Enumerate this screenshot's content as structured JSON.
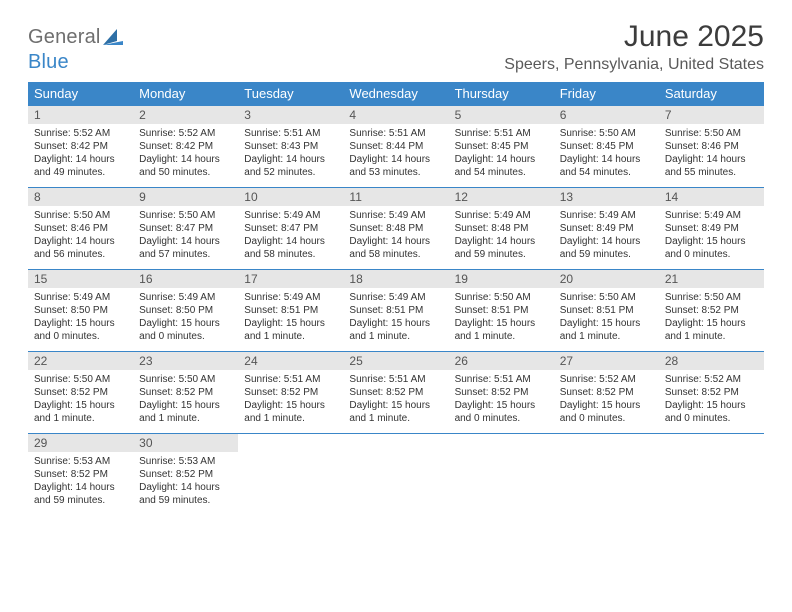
{
  "brand": {
    "word1": "General",
    "word2": "Blue"
  },
  "title": "June 2025",
  "location": "Speers, Pennsylvania, United States",
  "styling": {
    "header_bg": "#3a86c8",
    "header_text": "#ffffff",
    "daynum_bg": "#e6e6e6",
    "border_color": "#3a86c8",
    "body_text": "#333333",
    "page_bg": "#ffffff",
    "title_color": "#3c3c3c",
    "location_color": "#5a5a5a",
    "logo_gray": "#6e6e6e",
    "logo_blue": "#3a86c8",
    "month_title_fontsize": 30,
    "location_fontsize": 16,
    "weekday_fontsize": 13,
    "daynum_fontsize": 12,
    "body_fontsize": 10,
    "columns": 7
  },
  "weekdays": [
    "Sunday",
    "Monday",
    "Tuesday",
    "Wednesday",
    "Thursday",
    "Friday",
    "Saturday"
  ],
  "days": [
    {
      "n": "1",
      "sunrise": "Sunrise: 5:52 AM",
      "sunset": "Sunset: 8:42 PM",
      "dl1": "Daylight: 14 hours",
      "dl2": "and 49 minutes."
    },
    {
      "n": "2",
      "sunrise": "Sunrise: 5:52 AM",
      "sunset": "Sunset: 8:42 PM",
      "dl1": "Daylight: 14 hours",
      "dl2": "and 50 minutes."
    },
    {
      "n": "3",
      "sunrise": "Sunrise: 5:51 AM",
      "sunset": "Sunset: 8:43 PM",
      "dl1": "Daylight: 14 hours",
      "dl2": "and 52 minutes."
    },
    {
      "n": "4",
      "sunrise": "Sunrise: 5:51 AM",
      "sunset": "Sunset: 8:44 PM",
      "dl1": "Daylight: 14 hours",
      "dl2": "and 53 minutes."
    },
    {
      "n": "5",
      "sunrise": "Sunrise: 5:51 AM",
      "sunset": "Sunset: 8:45 PM",
      "dl1": "Daylight: 14 hours",
      "dl2": "and 54 minutes."
    },
    {
      "n": "6",
      "sunrise": "Sunrise: 5:50 AM",
      "sunset": "Sunset: 8:45 PM",
      "dl1": "Daylight: 14 hours",
      "dl2": "and 54 minutes."
    },
    {
      "n": "7",
      "sunrise": "Sunrise: 5:50 AM",
      "sunset": "Sunset: 8:46 PM",
      "dl1": "Daylight: 14 hours",
      "dl2": "and 55 minutes."
    },
    {
      "n": "8",
      "sunrise": "Sunrise: 5:50 AM",
      "sunset": "Sunset: 8:46 PM",
      "dl1": "Daylight: 14 hours",
      "dl2": "and 56 minutes."
    },
    {
      "n": "9",
      "sunrise": "Sunrise: 5:50 AM",
      "sunset": "Sunset: 8:47 PM",
      "dl1": "Daylight: 14 hours",
      "dl2": "and 57 minutes."
    },
    {
      "n": "10",
      "sunrise": "Sunrise: 5:49 AM",
      "sunset": "Sunset: 8:47 PM",
      "dl1": "Daylight: 14 hours",
      "dl2": "and 58 minutes."
    },
    {
      "n": "11",
      "sunrise": "Sunrise: 5:49 AM",
      "sunset": "Sunset: 8:48 PM",
      "dl1": "Daylight: 14 hours",
      "dl2": "and 58 minutes."
    },
    {
      "n": "12",
      "sunrise": "Sunrise: 5:49 AM",
      "sunset": "Sunset: 8:48 PM",
      "dl1": "Daylight: 14 hours",
      "dl2": "and 59 minutes."
    },
    {
      "n": "13",
      "sunrise": "Sunrise: 5:49 AM",
      "sunset": "Sunset: 8:49 PM",
      "dl1": "Daylight: 14 hours",
      "dl2": "and 59 minutes."
    },
    {
      "n": "14",
      "sunrise": "Sunrise: 5:49 AM",
      "sunset": "Sunset: 8:49 PM",
      "dl1": "Daylight: 15 hours",
      "dl2": "and 0 minutes."
    },
    {
      "n": "15",
      "sunrise": "Sunrise: 5:49 AM",
      "sunset": "Sunset: 8:50 PM",
      "dl1": "Daylight: 15 hours",
      "dl2": "and 0 minutes."
    },
    {
      "n": "16",
      "sunrise": "Sunrise: 5:49 AM",
      "sunset": "Sunset: 8:50 PM",
      "dl1": "Daylight: 15 hours",
      "dl2": "and 0 minutes."
    },
    {
      "n": "17",
      "sunrise": "Sunrise: 5:49 AM",
      "sunset": "Sunset: 8:51 PM",
      "dl1": "Daylight: 15 hours",
      "dl2": "and 1 minute."
    },
    {
      "n": "18",
      "sunrise": "Sunrise: 5:49 AM",
      "sunset": "Sunset: 8:51 PM",
      "dl1": "Daylight: 15 hours",
      "dl2": "and 1 minute."
    },
    {
      "n": "19",
      "sunrise": "Sunrise: 5:50 AM",
      "sunset": "Sunset: 8:51 PM",
      "dl1": "Daylight: 15 hours",
      "dl2": "and 1 minute."
    },
    {
      "n": "20",
      "sunrise": "Sunrise: 5:50 AM",
      "sunset": "Sunset: 8:51 PM",
      "dl1": "Daylight: 15 hours",
      "dl2": "and 1 minute."
    },
    {
      "n": "21",
      "sunrise": "Sunrise: 5:50 AM",
      "sunset": "Sunset: 8:52 PM",
      "dl1": "Daylight: 15 hours",
      "dl2": "and 1 minute."
    },
    {
      "n": "22",
      "sunrise": "Sunrise: 5:50 AM",
      "sunset": "Sunset: 8:52 PM",
      "dl1": "Daylight: 15 hours",
      "dl2": "and 1 minute."
    },
    {
      "n": "23",
      "sunrise": "Sunrise: 5:50 AM",
      "sunset": "Sunset: 8:52 PM",
      "dl1": "Daylight: 15 hours",
      "dl2": "and 1 minute."
    },
    {
      "n": "24",
      "sunrise": "Sunrise: 5:51 AM",
      "sunset": "Sunset: 8:52 PM",
      "dl1": "Daylight: 15 hours",
      "dl2": "and 1 minute."
    },
    {
      "n": "25",
      "sunrise": "Sunrise: 5:51 AM",
      "sunset": "Sunset: 8:52 PM",
      "dl1": "Daylight: 15 hours",
      "dl2": "and 1 minute."
    },
    {
      "n": "26",
      "sunrise": "Sunrise: 5:51 AM",
      "sunset": "Sunset: 8:52 PM",
      "dl1": "Daylight: 15 hours",
      "dl2": "and 0 minutes."
    },
    {
      "n": "27",
      "sunrise": "Sunrise: 5:52 AM",
      "sunset": "Sunset: 8:52 PM",
      "dl1": "Daylight: 15 hours",
      "dl2": "and 0 minutes."
    },
    {
      "n": "28",
      "sunrise": "Sunrise: 5:52 AM",
      "sunset": "Sunset: 8:52 PM",
      "dl1": "Daylight: 15 hours",
      "dl2": "and 0 minutes."
    },
    {
      "n": "29",
      "sunrise": "Sunrise: 5:53 AM",
      "sunset": "Sunset: 8:52 PM",
      "dl1": "Daylight: 14 hours",
      "dl2": "and 59 minutes."
    },
    {
      "n": "30",
      "sunrise": "Sunrise: 5:53 AM",
      "sunset": "Sunset: 8:52 PM",
      "dl1": "Daylight: 14 hours",
      "dl2": "and 59 minutes."
    }
  ]
}
